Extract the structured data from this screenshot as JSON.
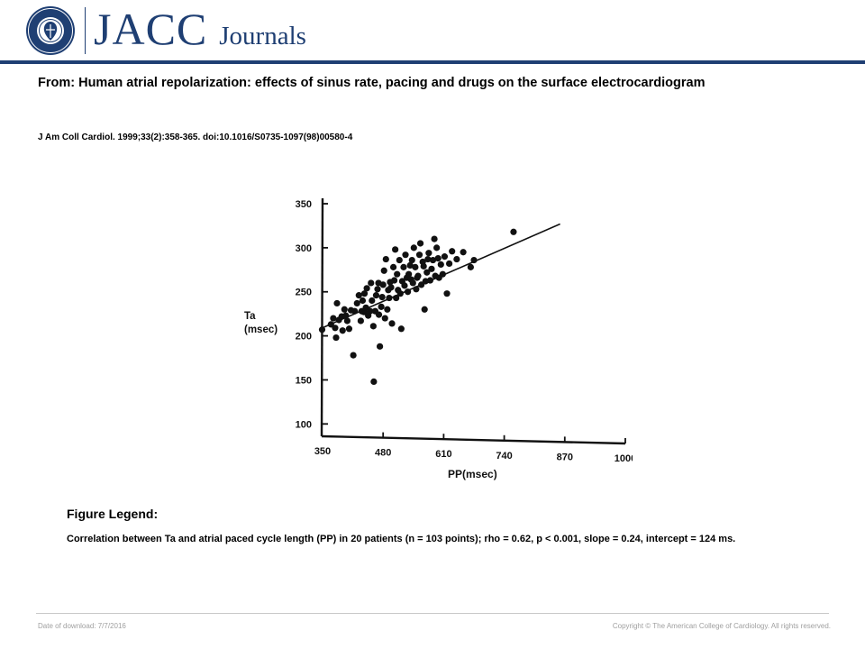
{
  "header": {
    "logo": {
      "icon": "acc-seal-icon",
      "text": "AMERICAN COLLEGE OF CARDIOLOGY",
      "color": "#1f3f73"
    },
    "brand_main": "JACC",
    "brand_sub": "Journals"
  },
  "article": {
    "title": "From: Human atrial repolarization: effects of sinus rate, pacing and drugs on the surface electrocardiogram",
    "citation": "J Am Coll Cardiol. 1999;33(2):358-365. doi:10.1016/S0735-1097(98)00580-4"
  },
  "legend": {
    "heading": "Figure Legend:",
    "text": "Correlation between Ta and atrial paced cycle length (PP) in 20 patients (n = 103 points); rho = 0.62, p < 0.001, slope = 0.24, intercept = 124 ms."
  },
  "footer": {
    "download": "Date of download: 7/7/2016",
    "copyright": "Copyright © The American College of Cardiology. All rights reserved."
  },
  "chart_data": {
    "type": "scatter",
    "xlabel": "PP(msec)",
    "ylabel": [
      "Ta",
      "(msec)"
    ],
    "x_ticks": [
      350,
      480,
      610,
      740,
      870,
      1000
    ],
    "y_ticks": [
      100,
      150,
      200,
      250,
      300,
      350
    ],
    "xlim": [
      350,
      1000
    ],
    "ylim": [
      100,
      350
    ],
    "grid": false,
    "regression_line": {
      "x": [
        345,
        860
      ],
      "y": [
        208,
        327
      ]
    },
    "points": [
      [
        349,
        207
      ],
      [
        368,
        213
      ],
      [
        373,
        220
      ],
      [
        377,
        209
      ],
      [
        379,
        198
      ],
      [
        381,
        237
      ],
      [
        385,
        218
      ],
      [
        391,
        222
      ],
      [
        393,
        206
      ],
      [
        397,
        230
      ],
      [
        400,
        223
      ],
      [
        403,
        217
      ],
      [
        407,
        208
      ],
      [
        411,
        229
      ],
      [
        416,
        178
      ],
      [
        419,
        228
      ],
      [
        424,
        237
      ],
      [
        428,
        246
      ],
      [
        432,
        217
      ],
      [
        434,
        228
      ],
      [
        436,
        240
      ],
      [
        439,
        227
      ],
      [
        440,
        248
      ],
      [
        443,
        232
      ],
      [
        445,
        254
      ],
      [
        448,
        223
      ],
      [
        452,
        228
      ],
      [
        454,
        260
      ],
      [
        456,
        240
      ],
      [
        459,
        211
      ],
      [
        460,
        148
      ],
      [
        463,
        228
      ],
      [
        465,
        246
      ],
      [
        468,
        253
      ],
      [
        470,
        260
      ],
      [
        471,
        224
      ],
      [
        473,
        188
      ],
      [
        476,
        233
      ],
      [
        478,
        244
      ],
      [
        480,
        258
      ],
      [
        482,
        274
      ],
      [
        484,
        220
      ],
      [
        486,
        287
      ],
      [
        489,
        230
      ],
      [
        491,
        252
      ],
      [
        493,
        243
      ],
      [
        495,
        261
      ],
      [
        497,
        255
      ],
      [
        499,
        214
      ],
      [
        502,
        278
      ],
      [
        504,
        263
      ],
      [
        506,
        298
      ],
      [
        508,
        243
      ],
      [
        510,
        270
      ],
      [
        512,
        252
      ],
      [
        515,
        286
      ],
      [
        517,
        248
      ],
      [
        519,
        208
      ],
      [
        521,
        262
      ],
      [
        524,
        278
      ],
      [
        526,
        257
      ],
      [
        528,
        292
      ],
      [
        531,
        266
      ],
      [
        533,
        250
      ],
      [
        535,
        270
      ],
      [
        538,
        280
      ],
      [
        540,
        264
      ],
      [
        542,
        286
      ],
      [
        544,
        260
      ],
      [
        546,
        300
      ],
      [
        549,
        278
      ],
      [
        551,
        253
      ],
      [
        553,
        266
      ],
      [
        555,
        268
      ],
      [
        558,
        292
      ],
      [
        560,
        305
      ],
      [
        562,
        258
      ],
      [
        565,
        284
      ],
      [
        567,
        279
      ],
      [
        569,
        230
      ],
      [
        571,
        262
      ],
      [
        574,
        272
      ],
      [
        576,
        287
      ],
      [
        578,
        294
      ],
      [
        581,
        263
      ],
      [
        584,
        276
      ],
      [
        587,
        286
      ],
      [
        590,
        310
      ],
      [
        592,
        268
      ],
      [
        595,
        300
      ],
      [
        598,
        288
      ],
      [
        600,
        266
      ],
      [
        604,
        281
      ],
      [
        608,
        270
      ],
      [
        612,
        290
      ],
      [
        617,
        248
      ],
      [
        622,
        282
      ],
      [
        628,
        296
      ],
      [
        638,
        287
      ],
      [
        652,
        295
      ],
      [
        668,
        278
      ],
      [
        675,
        286
      ],
      [
        760,
        318
      ]
    ]
  }
}
